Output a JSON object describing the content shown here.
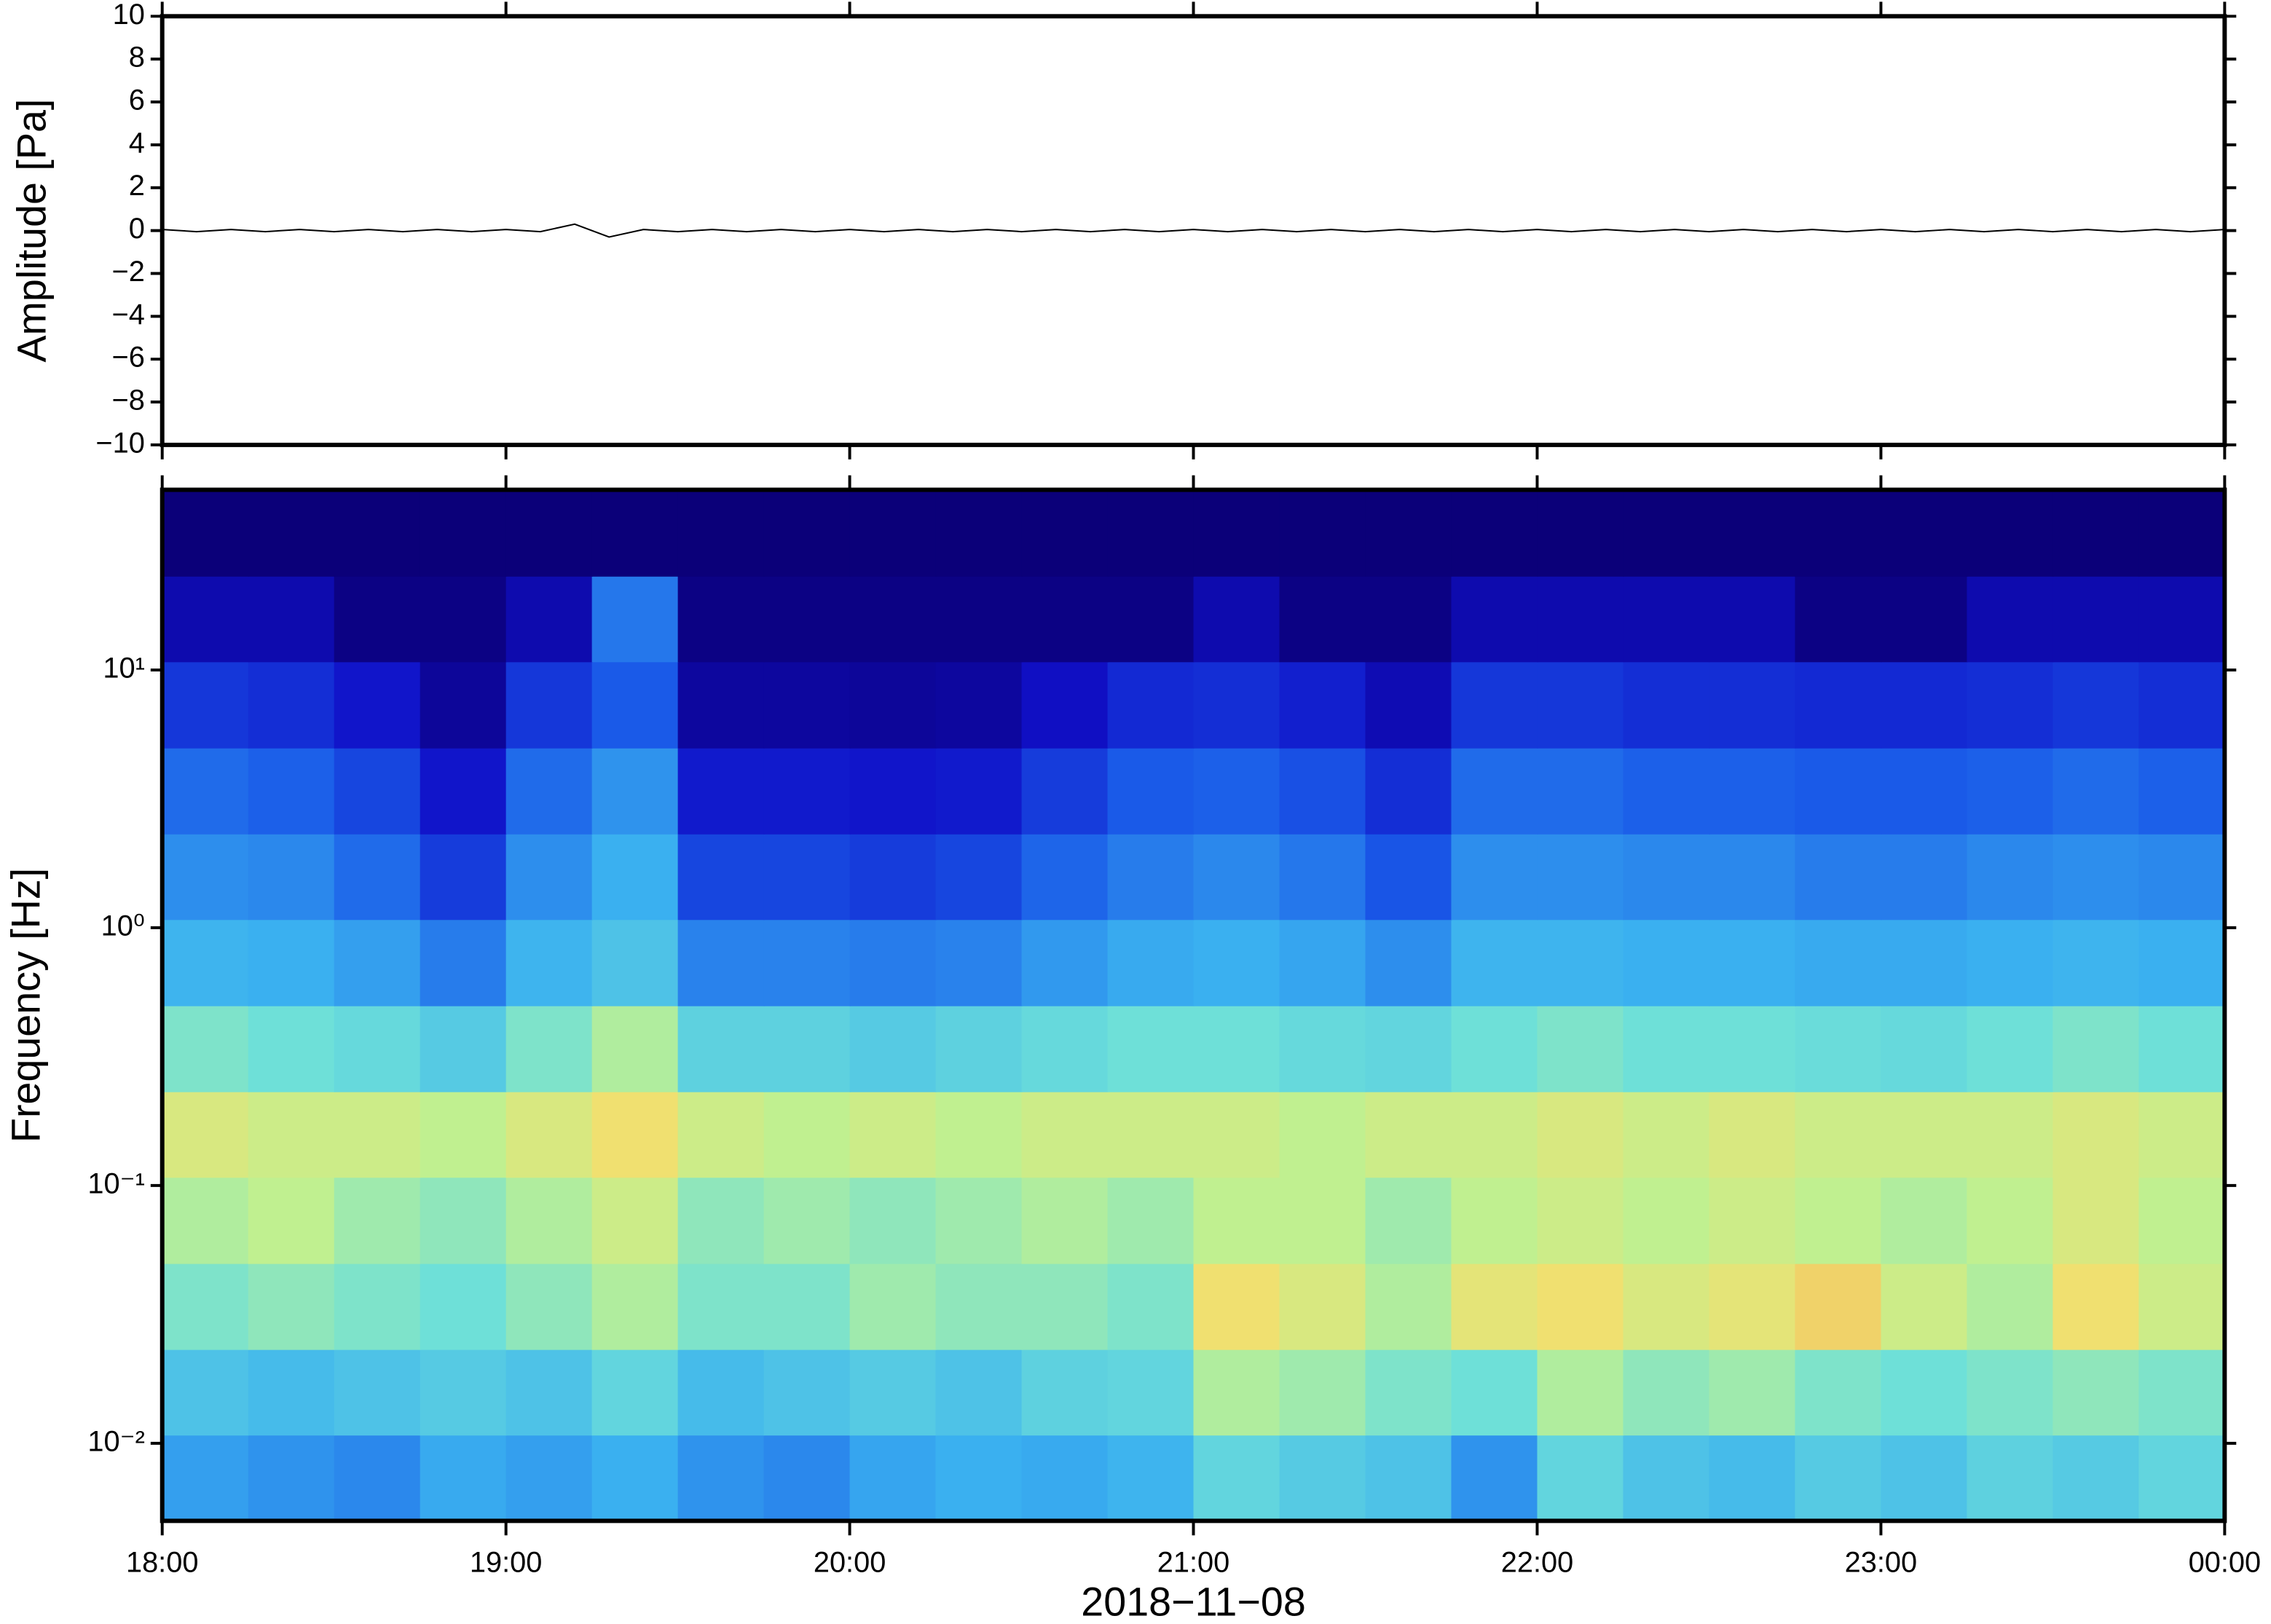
{
  "chart_data": [
    {
      "type": "line",
      "ylabel": "Amplitude [Pa]",
      "ylim": [
        -10,
        10
      ],
      "yticks": [
        {
          "value": -10,
          "label": "−10"
        },
        {
          "value": -8,
          "label": "−8"
        },
        {
          "value": -6,
          "label": "−6"
        },
        {
          "value": -4,
          "label": "−4"
        },
        {
          "value": -2,
          "label": "−2"
        },
        0,
        2,
        4,
        6,
        8,
        10
      ],
      "xlim": [
        18,
        24
      ],
      "x": [
        18.0,
        18.1,
        18.2,
        18.3,
        18.4,
        18.5,
        18.6,
        18.7,
        18.8,
        18.9,
        19.0,
        19.1,
        19.2,
        19.3,
        19.4,
        19.5,
        19.6,
        19.7,
        19.8,
        19.9,
        20.0,
        20.1,
        20.2,
        20.3,
        20.4,
        20.5,
        20.6,
        20.7,
        20.8,
        20.9,
        21.0,
        21.1,
        21.2,
        21.3,
        21.4,
        21.5,
        21.6,
        21.7,
        21.8,
        21.9,
        22.0,
        22.1,
        22.2,
        22.3,
        22.4,
        22.5,
        22.6,
        22.7,
        22.8,
        22.9,
        23.0,
        23.1,
        23.2,
        23.3,
        23.4,
        23.5,
        23.6,
        23.7,
        23.8,
        23.9,
        24.0
      ],
      "series": [
        {
          "color": "#000000",
          "values": [
            0.05,
            -0.05,
            0.05,
            -0.05,
            0.05,
            -0.05,
            0.05,
            -0.05,
            0.05,
            -0.05,
            0.05,
            -0.05,
            0.3,
            -0.3,
            0.05,
            -0.05,
            0.05,
            -0.05,
            0.05,
            -0.05,
            0.05,
            -0.05,
            0.05,
            -0.05,
            0.05,
            -0.05,
            0.05,
            -0.05,
            0.05,
            -0.05,
            0.05,
            -0.05,
            0.05,
            -0.05,
            0.05,
            -0.05,
            0.05,
            -0.05,
            0.05,
            -0.05,
            0.05,
            -0.05,
            0.05,
            -0.05,
            0.05,
            -0.05,
            0.05,
            -0.05,
            0.05,
            -0.05,
            0.05,
            -0.05,
            0.05,
            -0.05,
            0.05,
            -0.05,
            0.05,
            -0.05,
            0.05,
            -0.05,
            0.05
          ]
        }
      ]
    },
    {
      "type": "heatmap",
      "ylabel": "Frequency [Hz]",
      "xlabel": "2018−11−08",
      "log_y": true,
      "ylim": [
        0.005,
        50
      ],
      "yticks": [
        {
          "value": 0.01,
          "label": "10⁻²"
        },
        {
          "value": 0.1,
          "label": "10⁻¹"
        },
        {
          "value": 1,
          "label": "10⁰"
        },
        {
          "value": 10,
          "label": "10¹"
        }
      ],
      "xlim": [
        18,
        24
      ],
      "xticks": [
        {
          "value": 18,
          "label": "18:00"
        },
        {
          "value": 19,
          "label": "19:00"
        },
        {
          "value": 20,
          "label": "20:00"
        },
        {
          "value": 21,
          "label": "21:00"
        },
        {
          "value": 22,
          "label": "22:00"
        },
        {
          "value": 23,
          "label": "23:00"
        },
        {
          "value": 24,
          "label": "00:00"
        }
      ],
      "x_bins": [
        18,
        18.25,
        18.5,
        18.75,
        19,
        19.25,
        19.5,
        19.75,
        20,
        20.25,
        20.5,
        20.75,
        21,
        21.25,
        21.5,
        21.75,
        22,
        22.25,
        22.5,
        22.75,
        23,
        23.25,
        23.5,
        23.75,
        24
      ],
      "y_bins": [
        0.005,
        0.0108,
        0.0232,
        0.05,
        0.108,
        0.232,
        0.5,
        1.08,
        2.32,
        5,
        10.8,
        23.2,
        50
      ],
      "zlim": [
        0,
        1
      ],
      "colormap": [
        [
          0,
          "#0b0079"
        ],
        [
          0.15,
          "#1010c8"
        ],
        [
          0.3,
          "#1a5ae8"
        ],
        [
          0.45,
          "#3ab0f0"
        ],
        [
          0.58,
          "#6ee0d8"
        ],
        [
          0.68,
          "#c0f090"
        ],
        [
          0.76,
          "#f0e070"
        ],
        [
          0.85,
          "#f0a050"
        ],
        [
          1,
          "#e05030"
        ]
      ],
      "z": [
        [
          0.42,
          0.4,
          0.38,
          0.44,
          0.42,
          0.45,
          0.4,
          0.38,
          0.43,
          0.45,
          0.44,
          0.46,
          0.55,
          0.52,
          0.5,
          0.4,
          0.55,
          0.5,
          0.48,
          0.52,
          0.5,
          0.54,
          0.52,
          0.55
        ],
        [
          0.5,
          0.48,
          0.5,
          0.52,
          0.5,
          0.55,
          0.48,
          0.5,
          0.52,
          0.5,
          0.54,
          0.55,
          0.66,
          0.64,
          0.6,
          0.58,
          0.66,
          0.62,
          0.64,
          0.6,
          0.58,
          0.6,
          0.62,
          0.6
        ],
        [
          0.6,
          0.62,
          0.6,
          0.58,
          0.62,
          0.66,
          0.6,
          0.6,
          0.64,
          0.62,
          0.62,
          0.6,
          0.76,
          0.72,
          0.66,
          0.74,
          0.76,
          0.72,
          0.74,
          0.78,
          0.7,
          0.66,
          0.76,
          0.7
        ],
        [
          0.66,
          0.68,
          0.64,
          0.62,
          0.66,
          0.7,
          0.62,
          0.64,
          0.62,
          0.64,
          0.66,
          0.64,
          0.68,
          0.68,
          0.64,
          0.68,
          0.7,
          0.68,
          0.7,
          0.68,
          0.66,
          0.68,
          0.72,
          0.68
        ],
        [
          0.72,
          0.7,
          0.7,
          0.68,
          0.72,
          0.76,
          0.7,
          0.68,
          0.7,
          0.68,
          0.7,
          0.7,
          0.7,
          0.68,
          0.7,
          0.7,
          0.72,
          0.7,
          0.72,
          0.7,
          0.7,
          0.7,
          0.72,
          0.7
        ],
        [
          0.6,
          0.58,
          0.56,
          0.52,
          0.6,
          0.66,
          0.54,
          0.54,
          0.52,
          0.54,
          0.56,
          0.58,
          0.58,
          0.56,
          0.55,
          0.58,
          0.6,
          0.58,
          0.58,
          0.57,
          0.56,
          0.58,
          0.6,
          0.58
        ],
        [
          0.46,
          0.45,
          0.42,
          0.36,
          0.46,
          0.5,
          0.37,
          0.37,
          0.36,
          0.37,
          0.41,
          0.44,
          0.45,
          0.43,
          0.39,
          0.46,
          0.46,
          0.45,
          0.45,
          0.44,
          0.44,
          0.45,
          0.46,
          0.45
        ],
        [
          0.39,
          0.38,
          0.33,
          0.24,
          0.39,
          0.45,
          0.26,
          0.26,
          0.24,
          0.26,
          0.32,
          0.36,
          0.38,
          0.35,
          0.29,
          0.39,
          0.39,
          0.38,
          0.38,
          0.36,
          0.36,
          0.38,
          0.39,
          0.38
        ],
        [
          0.33,
          0.31,
          0.26,
          0.16,
          0.33,
          0.4,
          0.17,
          0.17,
          0.16,
          0.17,
          0.24,
          0.3,
          0.31,
          0.28,
          0.21,
          0.33,
          0.33,
          0.31,
          0.31,
          0.3,
          0.3,
          0.31,
          0.33,
          0.31
        ],
        [
          0.23,
          0.21,
          0.16,
          0.06,
          0.23,
          0.3,
          0.07,
          0.07,
          0.06,
          0.07,
          0.14,
          0.2,
          0.21,
          0.18,
          0.11,
          0.23,
          0.23,
          0.21,
          0.21,
          0.2,
          0.2,
          0.21,
          0.23,
          0.21
        ],
        [
          0.1,
          0.1,
          0.02,
          0.02,
          0.1,
          0.35,
          0.02,
          0.02,
          0.02,
          0.02,
          0.02,
          0.02,
          0.1,
          0.02,
          0.02,
          0.1,
          0.1,
          0.1,
          0.1,
          0.02,
          0.02,
          0.1,
          0.1,
          0.1
        ],
        [
          0,
          0,
          0,
          0,
          0,
          0,
          0,
          0,
          0,
          0,
          0,
          0,
          0,
          0,
          0,
          0,
          0,
          0,
          0,
          0,
          0,
          0,
          0,
          0
        ]
      ]
    }
  ]
}
